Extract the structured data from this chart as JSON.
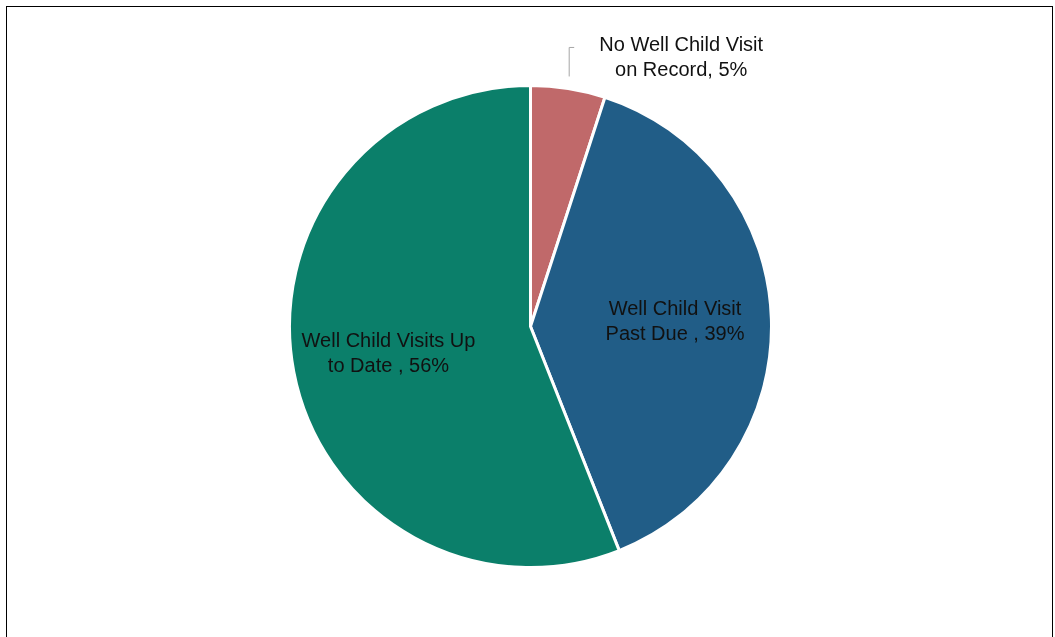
{
  "chart_data": {
    "type": "pie",
    "categories": [
      "No Well Child Visit on Record",
      "Well Child Visit Past Due ",
      "Well Child Visits Up to Date "
    ],
    "values": [
      5,
      39,
      56
    ],
    "value_labels": [
      "5%",
      "39%",
      "56%"
    ],
    "colors": [
      "#c0696a",
      "#215d87",
      "#0b7f6a"
    ],
    "legend": false
  }
}
